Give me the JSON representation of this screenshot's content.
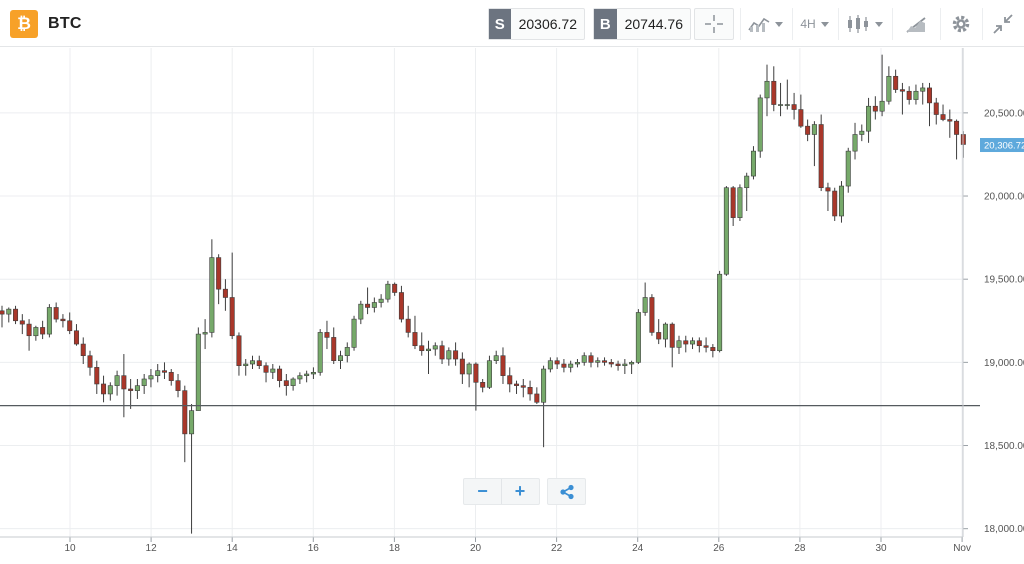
{
  "header": {
    "logo_glyph": "₿",
    "symbol": "BTC",
    "sell_label": "S",
    "sell_price": "20306.72",
    "buy_label": "B",
    "buy_price": "20744.76",
    "timeframe": "4H",
    "icons": [
      "crosshair-icon",
      "indicators-icon",
      "candlestick-icon",
      "drawing-icon",
      "gear-icon",
      "collapse-icon"
    ]
  },
  "zoom": {
    "minus": "−",
    "plus": "+",
    "share_icon": "share-icon"
  },
  "chart_data": {
    "type": "candlestick",
    "symbol": "BTC",
    "interval": "4H",
    "current_price": 20306.72,
    "current_price_label": "20,306.72",
    "horizontal_line": 18740,
    "ylim": [
      17950,
      20890
    ],
    "y_ticks": [
      "18,000.00",
      "18,500.00",
      "19,000.00",
      "19,500.00",
      "20,000.00",
      "20,500.00"
    ],
    "y_tick_values": [
      18000,
      18500,
      19000,
      19500,
      20000,
      20500
    ],
    "x_ticks": [
      "10",
      "12",
      "14",
      "16",
      "18",
      "20",
      "22",
      "24",
      "26",
      "28",
      "30",
      "Nov"
    ],
    "grid": true,
    "candles": [
      [
        19310,
        19340,
        19210,
        19290
      ],
      [
        19290,
        19330,
        19240,
        19320
      ],
      [
        19320,
        19340,
        19230,
        19250
      ],
      [
        19250,
        19290,
        19170,
        19230
      ],
      [
        19230,
        19260,
        19070,
        19160
      ],
      [
        19160,
        19220,
        19130,
        19210
      ],
      [
        19210,
        19250,
        19140,
        19170
      ],
      [
        19170,
        19350,
        19150,
        19330
      ],
      [
        19330,
        19360,
        19240,
        19260
      ],
      [
        19260,
        19290,
        19210,
        19250
      ],
      [
        19250,
        19300,
        19170,
        19190
      ],
      [
        19190,
        19230,
        19100,
        19110
      ],
      [
        19110,
        19150,
        18990,
        19040
      ],
      [
        19040,
        19070,
        18920,
        18970
      ],
      [
        18970,
        19010,
        18810,
        18870
      ],
      [
        18870,
        18920,
        18760,
        18810
      ],
      [
        18810,
        18880,
        18770,
        18860
      ],
      [
        18860,
        18950,
        18800,
        18920
      ],
      [
        18920,
        19050,
        18670,
        18840
      ],
      [
        18840,
        18900,
        18720,
        18830
      ],
      [
        18830,
        18900,
        18780,
        18860
      ],
      [
        18860,
        18930,
        18810,
        18900
      ],
      [
        18900,
        18960,
        18850,
        18920
      ],
      [
        18920,
        18990,
        18880,
        18950
      ],
      [
        18950,
        19000,
        18900,
        18940
      ],
      [
        18940,
        18960,
        18860,
        18890
      ],
      [
        18890,
        18930,
        18790,
        18830
      ],
      [
        18830,
        18860,
        18400,
        18570
      ],
      [
        18570,
        18750,
        17970,
        18710
      ],
      [
        18710,
        19210,
        18710,
        19170
      ],
      [
        19170,
        19260,
        19080,
        19180
      ],
      [
        19180,
        19740,
        19150,
        19630
      ],
      [
        19630,
        19650,
        19350,
        19440
      ],
      [
        19440,
        19500,
        19310,
        19390
      ],
      [
        19390,
        19660,
        19140,
        19160
      ],
      [
        19160,
        19180,
        18920,
        18980
      ],
      [
        18980,
        19020,
        18920,
        18990
      ],
      [
        18990,
        19040,
        18960,
        19010
      ],
      [
        19010,
        19040,
        18960,
        18980
      ],
      [
        18980,
        19000,
        18880,
        18940
      ],
      [
        18940,
        18990,
        18900,
        18960
      ],
      [
        18960,
        18980,
        18850,
        18890
      ],
      [
        18890,
        18930,
        18800,
        18860
      ],
      [
        18860,
        18910,
        18830,
        18900
      ],
      [
        18900,
        18940,
        18870,
        18920
      ],
      [
        18920,
        18950,
        18880,
        18930
      ],
      [
        18930,
        18970,
        18900,
        18940
      ],
      [
        18940,
        19200,
        18920,
        19180
      ],
      [
        19180,
        19250,
        19080,
        19150
      ],
      [
        19150,
        19210,
        18990,
        19010
      ],
      [
        19010,
        19070,
        18960,
        19040
      ],
      [
        19040,
        19120,
        19000,
        19090
      ],
      [
        19090,
        19280,
        19070,
        19260
      ],
      [
        19260,
        19370,
        19230,
        19350
      ],
      [
        19350,
        19450,
        19290,
        19330
      ],
      [
        19330,
        19390,
        19300,
        19360
      ],
      [
        19360,
        19410,
        19330,
        19380
      ],
      [
        19380,
        19490,
        19360,
        19470
      ],
      [
        19470,
        19480,
        19400,
        19420
      ],
      [
        19420,
        19460,
        19240,
        19260
      ],
      [
        19260,
        19340,
        19150,
        19180
      ],
      [
        19180,
        19280,
        19080,
        19100
      ],
      [
        19100,
        19180,
        19040,
        19070
      ],
      [
        19070,
        19130,
        18930,
        19080
      ],
      [
        19080,
        19120,
        19040,
        19100
      ],
      [
        19100,
        19130,
        18990,
        19020
      ],
      [
        19020,
        19090,
        18980,
        19070
      ],
      [
        19070,
        19120,
        18980,
        19020
      ],
      [
        19020,
        19060,
        18870,
        18930
      ],
      [
        18930,
        19000,
        18850,
        18990
      ],
      [
        18990,
        19000,
        18710,
        18880
      ],
      [
        18880,
        18900,
        18820,
        18850
      ],
      [
        18850,
        19040,
        18840,
        19010
      ],
      [
        19010,
        19070,
        18990,
        19040
      ],
      [
        19040,
        19090,
        18870,
        18920
      ],
      [
        18920,
        18970,
        18820,
        18870
      ],
      [
        18870,
        18890,
        18810,
        18860
      ],
      [
        18860,
        18900,
        18790,
        18850
      ],
      [
        18850,
        18890,
        18770,
        18810
      ],
      [
        18810,
        18850,
        18750,
        18760
      ],
      [
        18760,
        18980,
        18490,
        18960
      ],
      [
        18960,
        19030,
        18940,
        19010
      ],
      [
        19010,
        19030,
        18960,
        18990
      ],
      [
        18990,
        19020,
        18940,
        18970
      ],
      [
        18970,
        19010,
        18940,
        18990
      ],
      [
        18990,
        19020,
        18970,
        19000
      ],
      [
        19000,
        19060,
        18980,
        19040
      ],
      [
        19040,
        19060,
        18970,
        19000
      ],
      [
        19000,
        19030,
        18970,
        19010
      ],
      [
        19010,
        19030,
        18980,
        19000
      ],
      [
        19000,
        19020,
        18970,
        18990
      ],
      [
        18990,
        19010,
        18950,
        18980
      ],
      [
        18980,
        19020,
        18930,
        18990
      ],
      [
        18990,
        19010,
        18930,
        19000
      ],
      [
        19000,
        19320,
        18990,
        19300
      ],
      [
        19300,
        19480,
        19280,
        19390
      ],
      [
        19390,
        19410,
        19160,
        19180
      ],
      [
        19180,
        19260,
        19110,
        19140
      ],
      [
        19140,
        19240,
        19090,
        19230
      ],
      [
        19230,
        19240,
        18970,
        19090
      ],
      [
        19090,
        19160,
        19050,
        19130
      ],
      [
        19130,
        19160,
        19060,
        19110
      ],
      [
        19110,
        19150,
        19080,
        19130
      ],
      [
        19130,
        19150,
        19060,
        19100
      ],
      [
        19100,
        19150,
        19060,
        19090
      ],
      [
        19090,
        19110,
        19030,
        19070
      ],
      [
        19070,
        19550,
        19060,
        19530
      ],
      [
        19530,
        20060,
        19520,
        20050
      ],
      [
        20050,
        20060,
        19820,
        19870
      ],
      [
        19870,
        20070,
        19850,
        20050
      ],
      [
        20050,
        20140,
        19910,
        20120
      ],
      [
        20120,
        20300,
        20100,
        20270
      ],
      [
        20270,
        20610,
        20230,
        20590
      ],
      [
        20590,
        20790,
        20480,
        20690
      ],
      [
        20690,
        20780,
        20510,
        20550
      ],
      [
        20550,
        20680,
        20480,
        20550
      ],
      [
        20550,
        20700,
        20520,
        20550
      ],
      [
        20550,
        20620,
        20460,
        20520
      ],
      [
        20520,
        20610,
        20410,
        20420
      ],
      [
        20420,
        20460,
        20330,
        20370
      ],
      [
        20370,
        20450,
        20180,
        20430
      ],
      [
        20430,
        20490,
        20030,
        20050
      ],
      [
        20050,
        20080,
        19910,
        20030
      ],
      [
        20030,
        20050,
        19850,
        19880
      ],
      [
        19880,
        20090,
        19840,
        20060
      ],
      [
        20060,
        20290,
        20020,
        20270
      ],
      [
        20270,
        20440,
        20220,
        20370
      ],
      [
        20370,
        20430,
        20330,
        20390
      ],
      [
        20390,
        20590,
        20320,
        20540
      ],
      [
        20540,
        20600,
        20460,
        20510
      ],
      [
        20510,
        20850,
        20480,
        20570
      ],
      [
        20570,
        20780,
        20550,
        20720
      ],
      [
        20720,
        20760,
        20620,
        20640
      ],
      [
        20640,
        20680,
        20490,
        20630
      ],
      [
        20630,
        20660,
        20550,
        20580
      ],
      [
        20580,
        20670,
        20550,
        20630
      ],
      [
        20630,
        20680,
        20550,
        20650
      ],
      [
        20650,
        20680,
        20420,
        20560
      ],
      [
        20560,
        20590,
        20430,
        20490
      ],
      [
        20490,
        20550,
        20450,
        20460
      ],
      [
        20460,
        20520,
        20350,
        20450
      ],
      [
        20450,
        20460,
        20220,
        20370
      ],
      [
        20370,
        20390,
        20230,
        20310
      ]
    ]
  }
}
